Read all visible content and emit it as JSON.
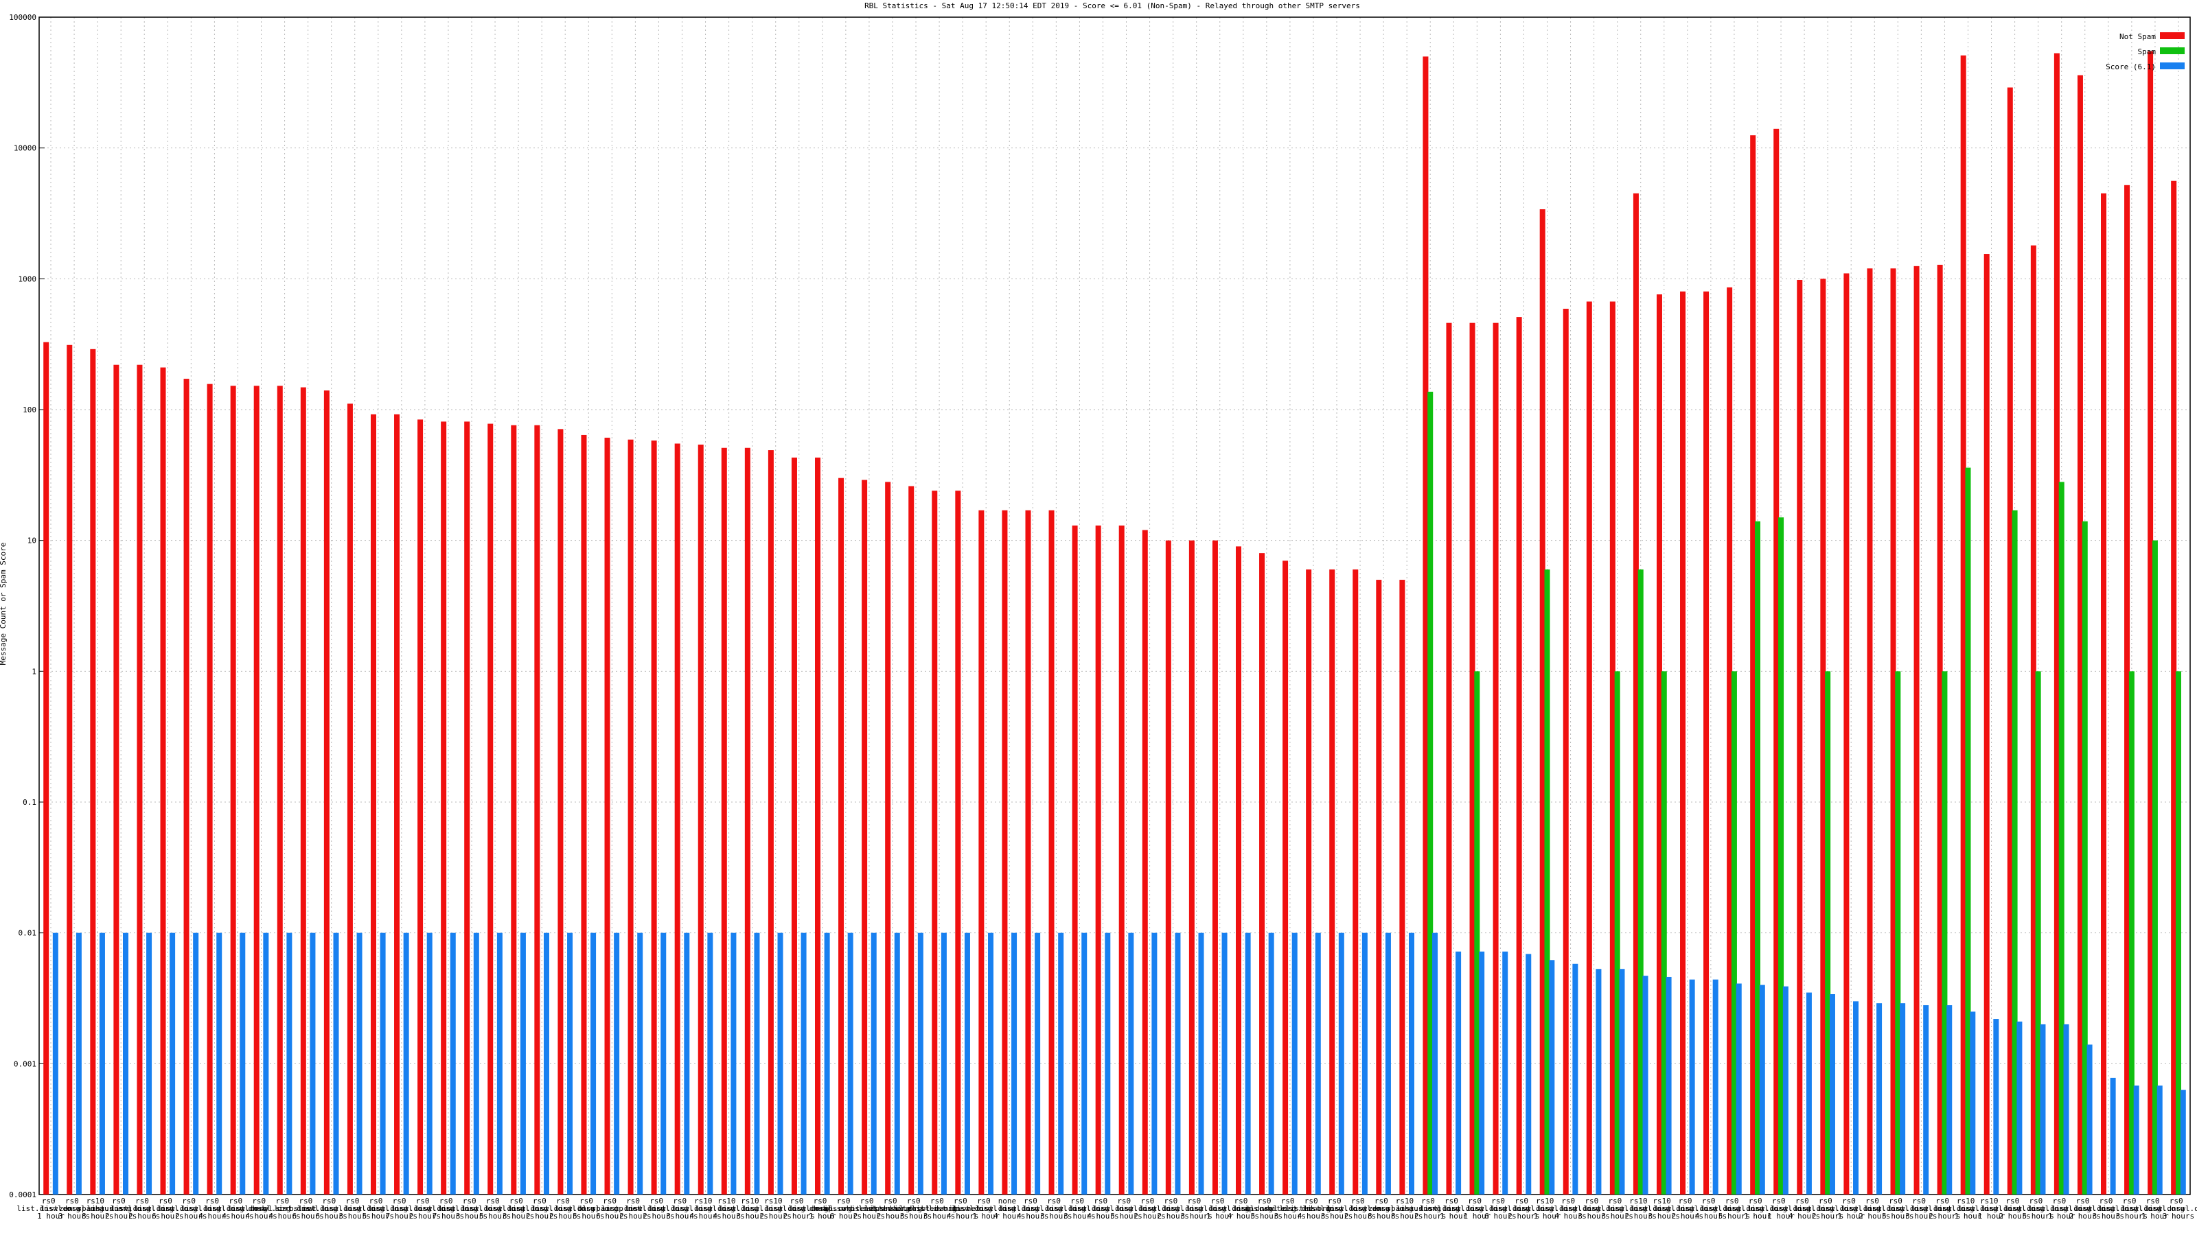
{
  "chart_data": {
    "type": "bar",
    "title": "RBL Statistics - Sat Aug 17 12:50:14 EDT 2019 - Score <= 6.01 (Non-Spam) - Relayed through other SMTP servers",
    "y_label": "Message Count or Spam Score",
    "log_scale": true,
    "grid": true,
    "legend": "top-right",
    "ylim": [
      0.0001,
      100000
    ],
    "yticks": [
      0.0001,
      0.001,
      0.01,
      0.1,
      1,
      10,
      100,
      1000,
      10000,
      100000
    ],
    "categories": [
      "rs0 list.dnswl.org 1 hour",
      "rs0 list.dnswl.org 3 hours",
      "rs10 zen.spamhaus.org 8 hours",
      "rs0 list.dnswl.org 2 hours",
      "rs0 list.dnswl.org 2 hours",
      "rs0 list.dnswl.org 6 hours",
      "rs0 list.dnswl.org 2 hours",
      "rs0 list.dnswl.org 4 hours",
      "rs0 list.dnswl.org 4 hours",
      "rs0 list.dnswl.org 4 hours",
      "rs0 dnsbl.sorbs.net 4 hours",
      "rs0 list.dnswl.org 6 hours",
      "rs0 list.dnswl.org 6 hours",
      "rs0 list.dnswl.org 3 hours",
      "rs0 list.dnswl.org 5 hours",
      "rs0 list.dnswl.org 7 hours",
      "rs0 list.dnswl.org 2 hours",
      "rs0 list.dnswl.org 7 hours",
      "rs0 list.dnswl.org 3 hours",
      "rs0 list.dnswl.org 5 hours",
      "rs0 list.dnswl.org 3 hours",
      "rs0 list.dnswl.org 2 hours",
      "rs0 list.dnswl.org 2 hours",
      "rs0 list.dnswl.org 5 hours",
      "rs0 bl.spamcop.net 6 hours",
      "rs0 list.dnswl.org 2 hours",
      "rs0 list.dnswl.org 2 hours",
      "rs0 list.dnswl.org 3 hours",
      "rs10 list.dnswl.org 4 hours",
      "rs10 list.dnswl.org 4 hours",
      "rs10 list.dnswl.org 3 hours",
      "rs10 list.dnswl.org 2 hours",
      "rs0 list.dnswl.org 2 hours",
      "rs0 list.dnswl.org 1 hour",
      "rs0 dnsbl.sorbs.net 6 hours",
      "rs0 ips.whitelisted.org 2 hours",
      "rs0 list.dnswl.org 2 hours",
      "rs0 ips.whitelisted.org 3 hours",
      "rs0 ix.dnsbl.manitu.net 3 hours",
      "rs0 list.dnswl.org 4 hours",
      "rs0 list.dnswl.org 1 hour",
      "none list.dnswl.org 4 hours",
      "rs0 list.dnswl.org 4 hours",
      "rs0 list.dnswl.org 3 hours",
      "rs0 list.dnswl.org 3 hours",
      "rs0 list.dnswl.org 4 hours",
      "rs0 list.dnswl.org 5 hours",
      "rs0 list.dnswl.org 2 hours",
      "rs0 list.dnswl.org 2 hours",
      "rs0 list.dnswl.org 3 hours",
      "rs0 list.dnswl.org 1 hour",
      "rs0 list.dnswl.org 4 hours",
      "rs0 list.dnswl.org 5 hours",
      "rs0 ips.whitelisted.org 3 hours",
      "rs0 list.dnswl.org 4 hours",
      "rs0 list.dnswl.org 3 hours",
      "rs0 list.dnswl.org 2 hours",
      "rs0 list.dnswl.org 8 hours",
      "rs10 zen.spamhaus.org 8 hours",
      "rs0 list.dnswl.org 2 hours",
      "rs0 list.dnswl.org 1 hour",
      "rs0 list.dnswl.org 1 hour",
      "rs0 list.dnswl.org 6 hours",
      "rs0 list.dnswl.org 2 hours",
      "rs10 list.dnswl.org 1 hour",
      "rs0 list.dnswl.org 4 hours",
      "rs0 list.dnswl.org 3 hours",
      "rs0 list.dnswl.org 3 hours",
      "rs10 list.dnswl.org 2 hours",
      "rs10 list.dnswl.org 3 hours",
      "rs0 list.dnswl.org 2 hours",
      "rs0 list.dnswl.org 4 hours",
      "rs0 list.dnswl.org 5 hours",
      "rs0 list.dnswl.org 1 hour",
      "rs0 list.dnswl.org 1 hour",
      "rs0 list.dnswl.org 4 hours",
      "rs0 list.dnswl.org 2 hours",
      "rs0 list.dnswl.org 1 hour",
      "rs0 list.dnswl.org 2 hours",
      "rs0 list.dnswl.org 5 hours",
      "rs0 list.dnswl.org 3 hours",
      "rs0 list.dnswl.org 2 hours",
      "rs10 list.dnswl.org 1 hour",
      "rs10 list.dnswl.org 1 hour",
      "rs0 list.dnswl.org 2 hours",
      "rs0 list.dnswl.org 5 hours",
      "rs0 list.dnswl.org 1 hour",
      "rs0 list.dnswl.org 2 hours",
      "rs0 list.dnswl.org 3 hours",
      "rs0 list.dnswl.org 3 hours",
      "rs0 list.dnswl.org 1 hour",
      "rs0 list.dnswl.org 3 hours"
    ],
    "series": [
      {
        "name": "Not Spam",
        "color": "#f01010",
        "values": [
          328,
          312,
          290,
          220,
          220,
          210,
          172,
          157,
          152,
          152,
          152,
          148,
          140,
          111,
          92,
          92,
          84,
          81,
          81,
          78,
          76,
          76,
          71,
          64,
          61,
          59,
          58,
          55,
          54,
          51,
          51,
          49,
          43,
          43,
          30,
          29,
          28,
          26,
          24,
          24,
          17,
          17,
          17,
          17,
          13,
          13,
          13,
          12,
          10,
          10,
          10,
          9,
          8,
          7,
          6,
          6,
          6,
          5,
          5,
          50000,
          460,
          460,
          460,
          510,
          3400,
          590,
          670,
          670,
          4500,
          760,
          800,
          800,
          860,
          12500,
          14000,
          980,
          1000,
          1100,
          1200,
          1200,
          1250,
          1280,
          51000,
          1550,
          29000,
          1800,
          53000,
          36000,
          4500,
          5200,
          55000,
          5600
        ]
      },
      {
        "name": "Spam",
        "color": "#10c010",
        "values": [
          null,
          null,
          null,
          null,
          null,
          null,
          null,
          null,
          null,
          null,
          null,
          null,
          null,
          null,
          null,
          null,
          null,
          null,
          null,
          null,
          null,
          null,
          null,
          null,
          null,
          null,
          null,
          null,
          null,
          null,
          null,
          null,
          null,
          null,
          null,
          null,
          null,
          null,
          null,
          null,
          null,
          null,
          null,
          null,
          null,
          null,
          null,
          null,
          null,
          null,
          null,
          null,
          null,
          null,
          null,
          null,
          null,
          null,
          null,
          137,
          null,
          1,
          null,
          null,
          6,
          null,
          null,
          1,
          6,
          1,
          null,
          null,
          1,
          14,
          15,
          null,
          1,
          null,
          null,
          1,
          null,
          1,
          36,
          null,
          17,
          1,
          28,
          14,
          null,
          1,
          10,
          1
        ]
      },
      {
        "name": "Score (6.1)",
        "color": "#1880f0",
        "values": [
          0.01,
          0.01,
          0.01,
          0.01,
          0.01,
          0.01,
          0.01,
          0.01,
          0.01,
          0.01,
          0.01,
          0.01,
          0.01,
          0.01,
          0.01,
          0.01,
          0.01,
          0.01,
          0.01,
          0.01,
          0.01,
          0.01,
          0.01,
          0.01,
          0.01,
          0.01,
          0.01,
          0.01,
          0.01,
          0.01,
          0.01,
          0.01,
          0.01,
          0.01,
          0.01,
          0.01,
          0.01,
          0.01,
          0.01,
          0.01,
          0.01,
          0.01,
          0.01,
          0.01,
          0.01,
          0.01,
          0.01,
          0.01,
          0.01,
          0.01,
          0.01,
          0.01,
          0.01,
          0.01,
          0.01,
          0.01,
          0.01,
          0.01,
          0.01,
          0.01,
          0.0072,
          0.0072,
          0.0072,
          0.0069,
          0.0062,
          0.0058,
          0.0053,
          0.0053,
          0.0047,
          0.0046,
          0.0044,
          0.0044,
          0.0041,
          0.004,
          0.0039,
          0.0035,
          0.0034,
          0.003,
          0.0029,
          0.0029,
          0.0028,
          0.0028,
          0.0025,
          0.0022,
          0.0021,
          0.002,
          0.002,
          0.0014,
          0.00078,
          0.00068,
          0.00068,
          0.00063
        ]
      }
    ]
  }
}
